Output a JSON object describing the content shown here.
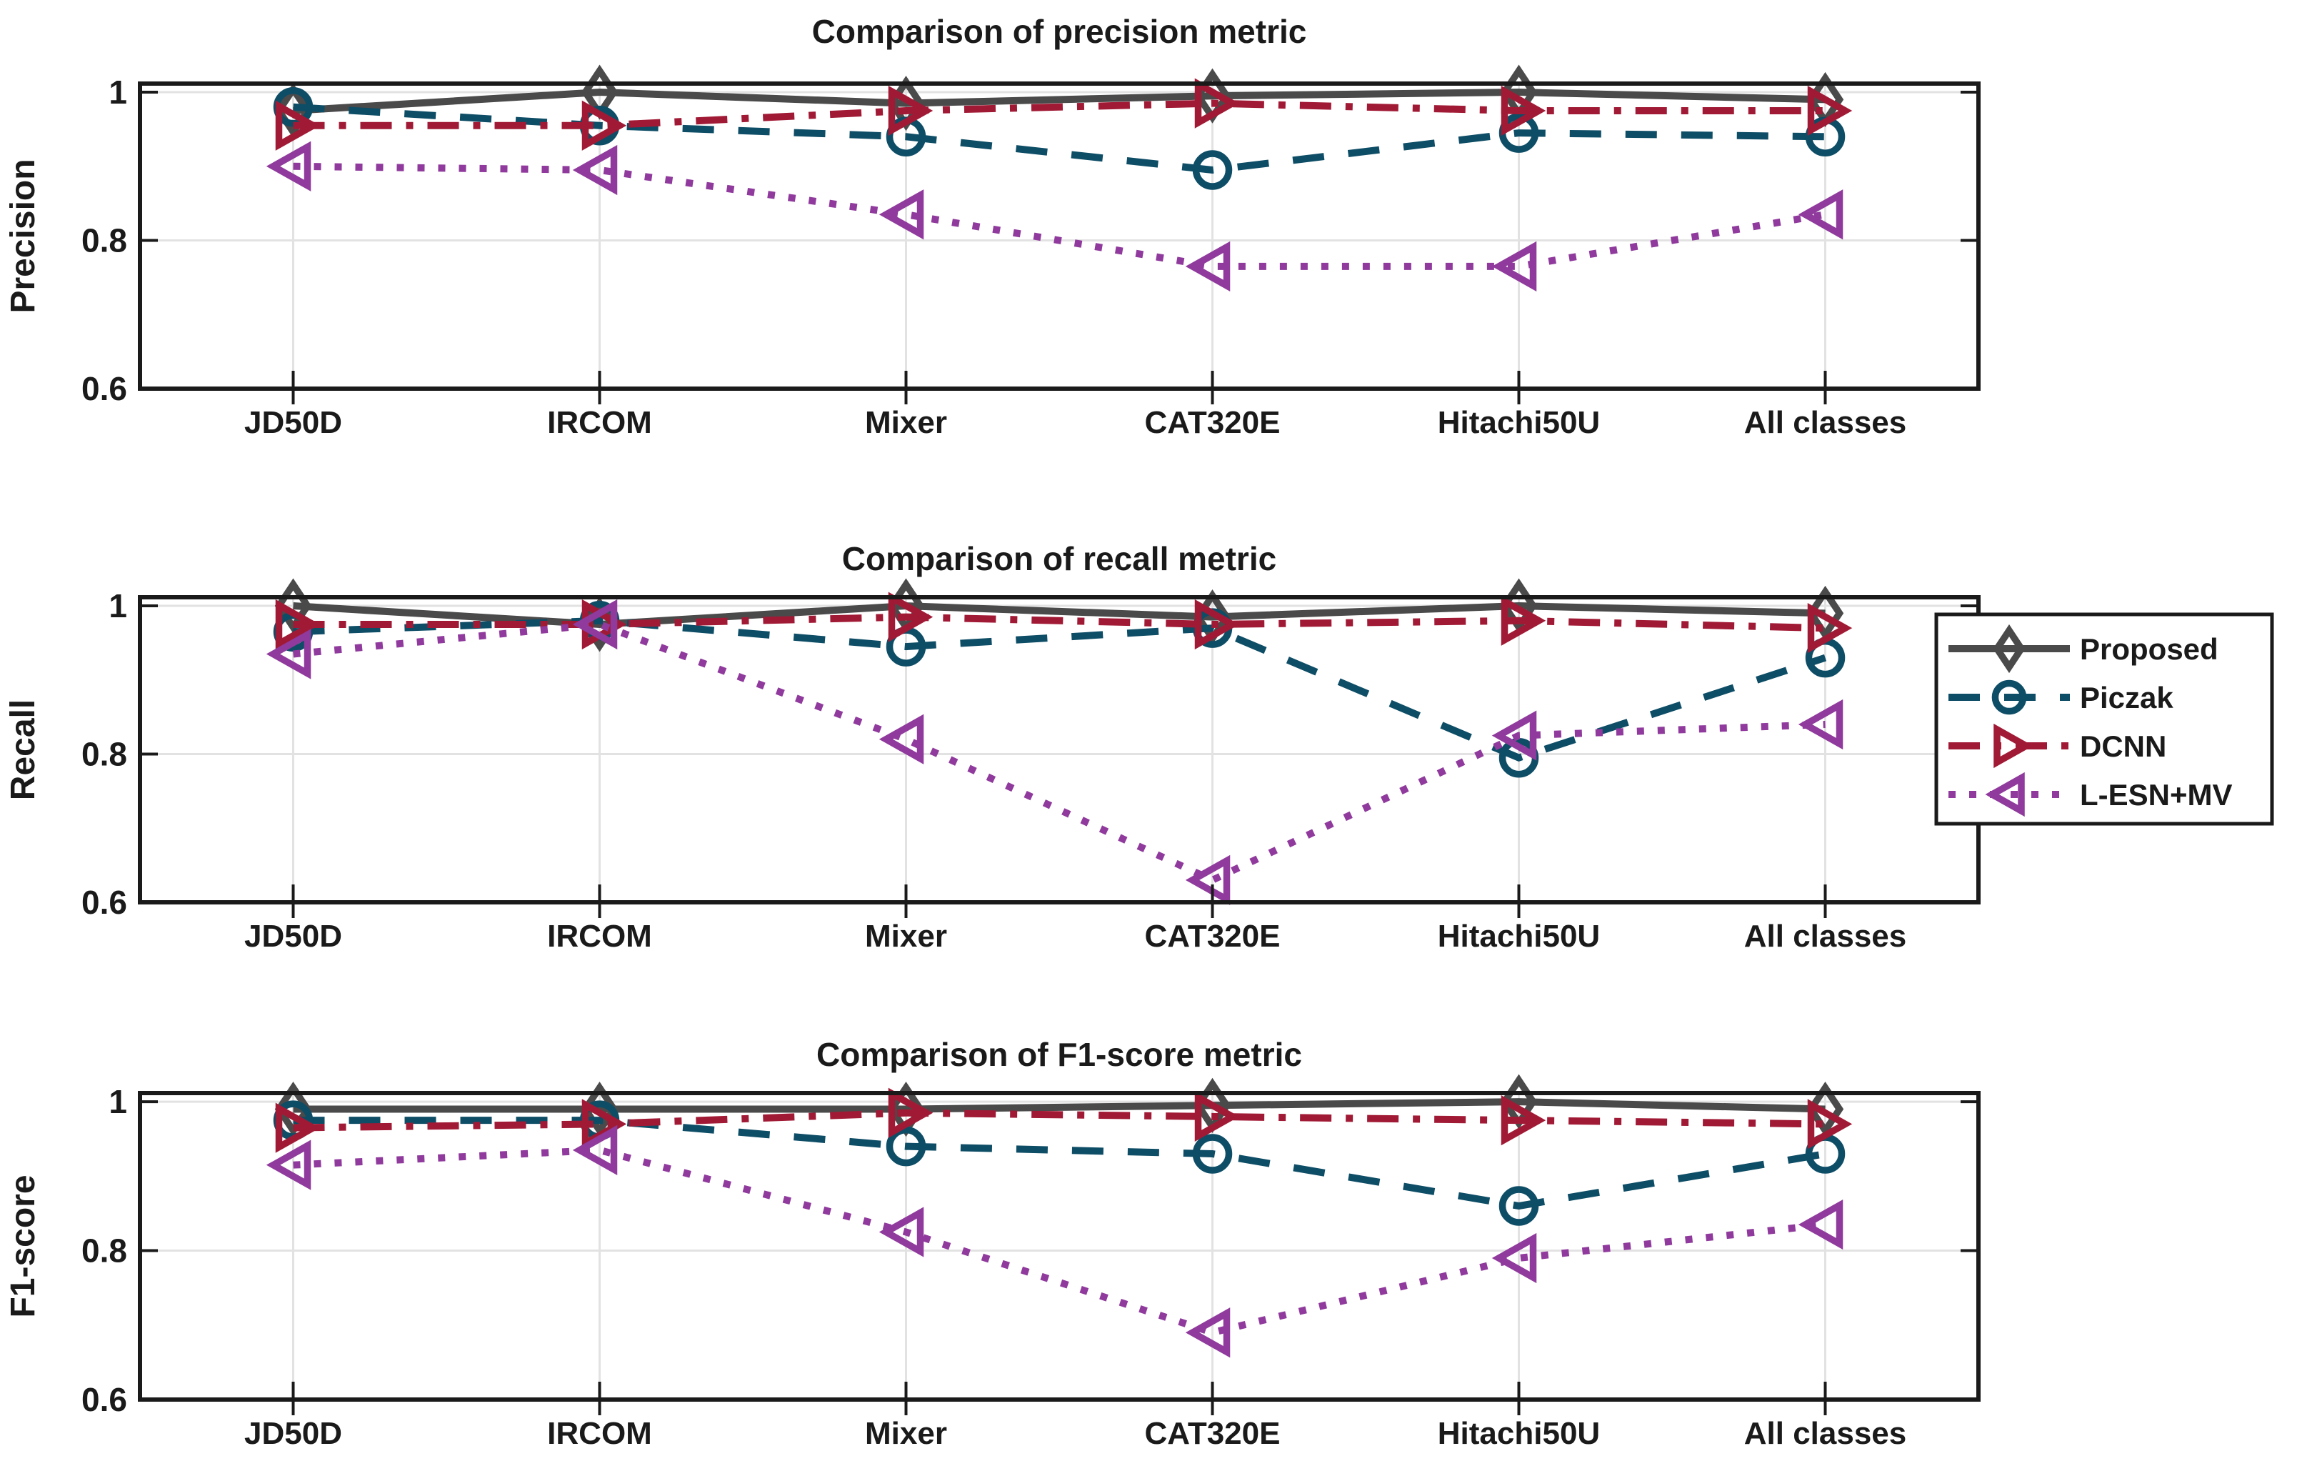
{
  "figure": {
    "background": "#ffffff",
    "axis_color": "#1a1a1a",
    "grid_color": "#e2e2e2",
    "text_color": "#1a1a1a"
  },
  "legend": {
    "entries": [
      "Proposed",
      "Piczak",
      "DCNN",
      "L-ESN+MV"
    ],
    "position": "right-of-middle-chart",
    "border_color": "#1a1a1a",
    "background": "#ffffff"
  },
  "chart_data": [
    {
      "type": "line",
      "title": "Comparison of precision metric",
      "ylabel": "Precision",
      "xlabel": "",
      "categories": [
        "JD50D",
        "IRCOM",
        "Mixer",
        "CAT320E",
        "Hitachi50U",
        "All classes"
      ],
      "ylim": [
        0.6,
        1.012
      ],
      "yticks": [
        0.6,
        0.8,
        1
      ],
      "ytick_labels": [
        "0.6",
        "0.8",
        "1"
      ],
      "grid": true,
      "legend_position": "none",
      "series": [
        {
          "name": "Proposed",
          "color": "#4a4a4a",
          "line": "solid",
          "marker": "diamond",
          "values": [
            0.975,
            1.0,
            0.985,
            0.995,
            1.0,
            0.99
          ]
        },
        {
          "name": "Piczak",
          "color": "#0e4d66",
          "line": "dashed",
          "marker": "circle",
          "values": [
            0.98,
            0.955,
            0.94,
            0.895,
            0.945,
            0.94
          ]
        },
        {
          "name": "DCNN",
          "color": "#a11a35",
          "line": "dashdot",
          "marker": "triangle-right",
          "values": [
            0.955,
            0.955,
            0.975,
            0.985,
            0.975,
            0.975
          ]
        },
        {
          "name": "L-ESN+MV",
          "color": "#8f3a9c",
          "line": "dotted",
          "marker": "triangle-left",
          "values": [
            0.9,
            0.895,
            0.835,
            0.765,
            0.765,
            0.835
          ]
        }
      ]
    },
    {
      "type": "line",
      "title": "Comparison of recall metric",
      "ylabel": "Recall",
      "xlabel": "",
      "categories": [
        "JD50D",
        "IRCOM",
        "Mixer",
        "CAT320E",
        "Hitachi50U",
        "All classes"
      ],
      "ylim": [
        0.6,
        1.012
      ],
      "yticks": [
        0.6,
        0.8,
        1
      ],
      "ytick_labels": [
        "0.6",
        "0.8",
        "1"
      ],
      "grid": true,
      "legend_position": "right",
      "series": [
        {
          "name": "Proposed",
          "color": "#4a4a4a",
          "line": "solid",
          "marker": "diamond",
          "values": [
            1.0,
            0.975,
            1.0,
            0.985,
            1.0,
            0.99
          ]
        },
        {
          "name": "Piczak",
          "color": "#0e4d66",
          "line": "dashed",
          "marker": "circle",
          "values": [
            0.965,
            0.98,
            0.945,
            0.97,
            0.795,
            0.93
          ]
        },
        {
          "name": "DCNN",
          "color": "#a11a35",
          "line": "dashdot",
          "marker": "triangle-right",
          "values": [
            0.975,
            0.975,
            0.985,
            0.975,
            0.98,
            0.97
          ]
        },
        {
          "name": "L-ESN+MV",
          "color": "#8f3a9c",
          "line": "dotted",
          "marker": "triangle-left",
          "values": [
            0.935,
            0.975,
            0.82,
            0.63,
            0.825,
            0.84
          ]
        }
      ]
    },
    {
      "type": "line",
      "title": "Comparison of F1-score metric",
      "ylabel": "F1-score",
      "xlabel": "",
      "categories": [
        "JD50D",
        "IRCOM",
        "Mixer",
        "CAT320E",
        "Hitachi50U",
        "All classes"
      ],
      "ylim": [
        0.6,
        1.012
      ],
      "yticks": [
        0.6,
        0.8,
        1
      ],
      "ytick_labels": [
        "0.6",
        "0.8",
        "1"
      ],
      "grid": true,
      "legend_position": "none",
      "series": [
        {
          "name": "Proposed",
          "color": "#4a4a4a",
          "line": "solid",
          "marker": "diamond",
          "values": [
            0.99,
            0.99,
            0.99,
            0.995,
            1.0,
            0.99
          ]
        },
        {
          "name": "Piczak",
          "color": "#0e4d66",
          "line": "dashed",
          "marker": "circle",
          "values": [
            0.975,
            0.975,
            0.94,
            0.93,
            0.86,
            0.93
          ]
        },
        {
          "name": "DCNN",
          "color": "#a11a35",
          "line": "dashdot",
          "marker": "triangle-right",
          "values": [
            0.965,
            0.97,
            0.985,
            0.98,
            0.975,
            0.97
          ]
        },
        {
          "name": "L-ESN+MV",
          "color": "#8f3a9c",
          "line": "dotted",
          "marker": "triangle-left",
          "values": [
            0.915,
            0.935,
            0.825,
            0.69,
            0.79,
            0.835
          ]
        }
      ]
    }
  ]
}
